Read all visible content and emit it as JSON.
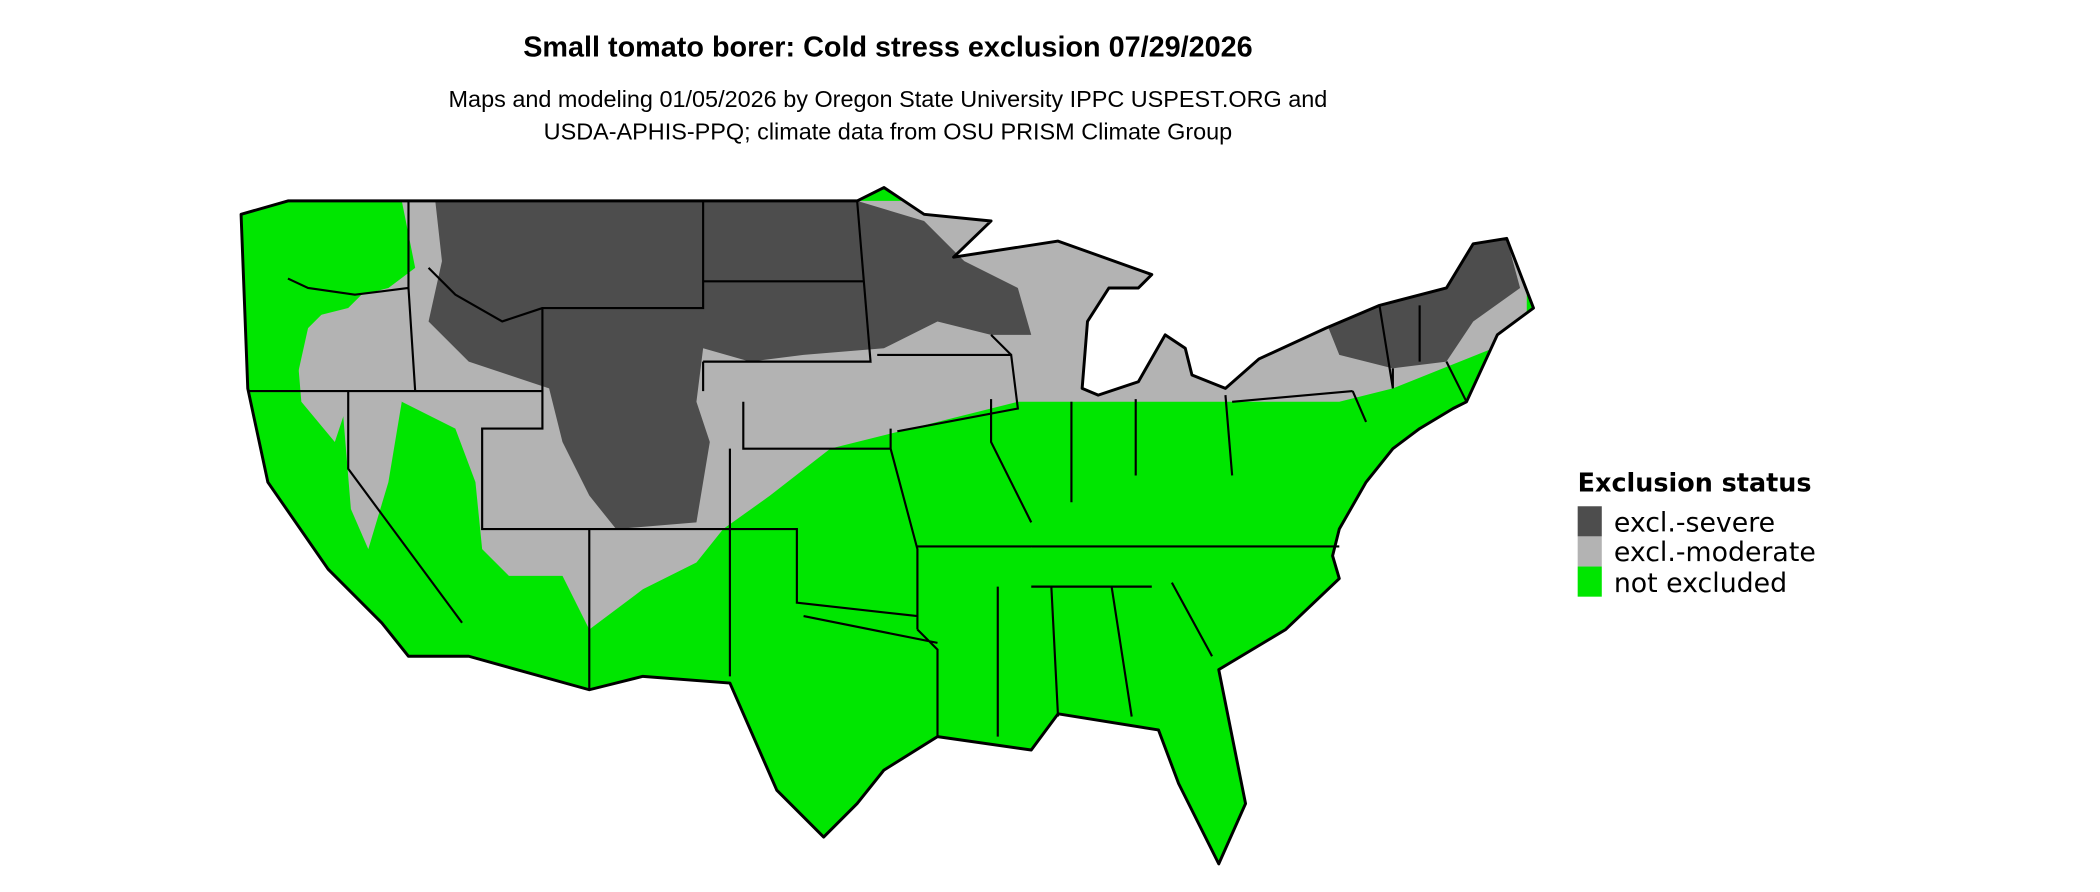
{
  "title": "Small tomato borer: Cold stress exclusion 07/29/2026",
  "subtitle_line1": "Maps and modeling 01/05/2026 by Oregon State University IPPC USPEST.ORG and",
  "subtitle_line2": "USDA-APHIS-PPQ; climate data from OSU PRISM Climate Group",
  "legend": {
    "title": "Exclusion status",
    "items": [
      {
        "label": "excl.-severe",
        "color": "#4d4d4d"
      },
      {
        "label": "excl.-moderate",
        "color": "#b3b3b3"
      },
      {
        "label": "not excluded",
        "color": "#00e600"
      }
    ]
  }
}
